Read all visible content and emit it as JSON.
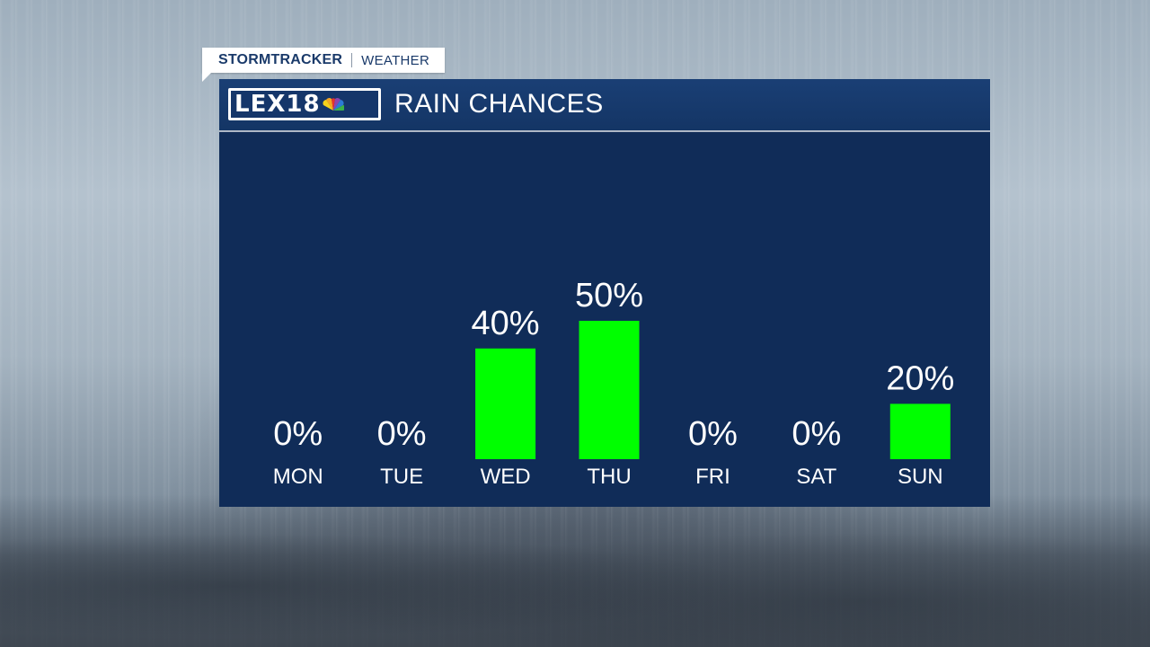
{
  "brand": {
    "tag_main": "STORMTRACKER",
    "tag_sub": "WEATHER",
    "logo_text": "LEX18",
    "icon": "nbc-peacock-icon"
  },
  "header": {
    "title": "RAIN CHANCES"
  },
  "colors": {
    "panel": "#102c58",
    "bar": "#00ff00",
    "text": "#ffffff"
  },
  "chart_data": {
    "type": "bar",
    "title": "RAIN CHANCES",
    "categories": [
      "MON",
      "TUE",
      "WED",
      "THU",
      "FRI",
      "SAT",
      "SUN"
    ],
    "values": [
      0,
      0,
      40,
      50,
      0,
      0,
      20
    ],
    "labels": [
      "0%",
      "0%",
      "40%",
      "50%",
      "0%",
      "0%",
      "20%"
    ],
    "unit": "%",
    "ylim": [
      0,
      100
    ],
    "grid": false
  }
}
